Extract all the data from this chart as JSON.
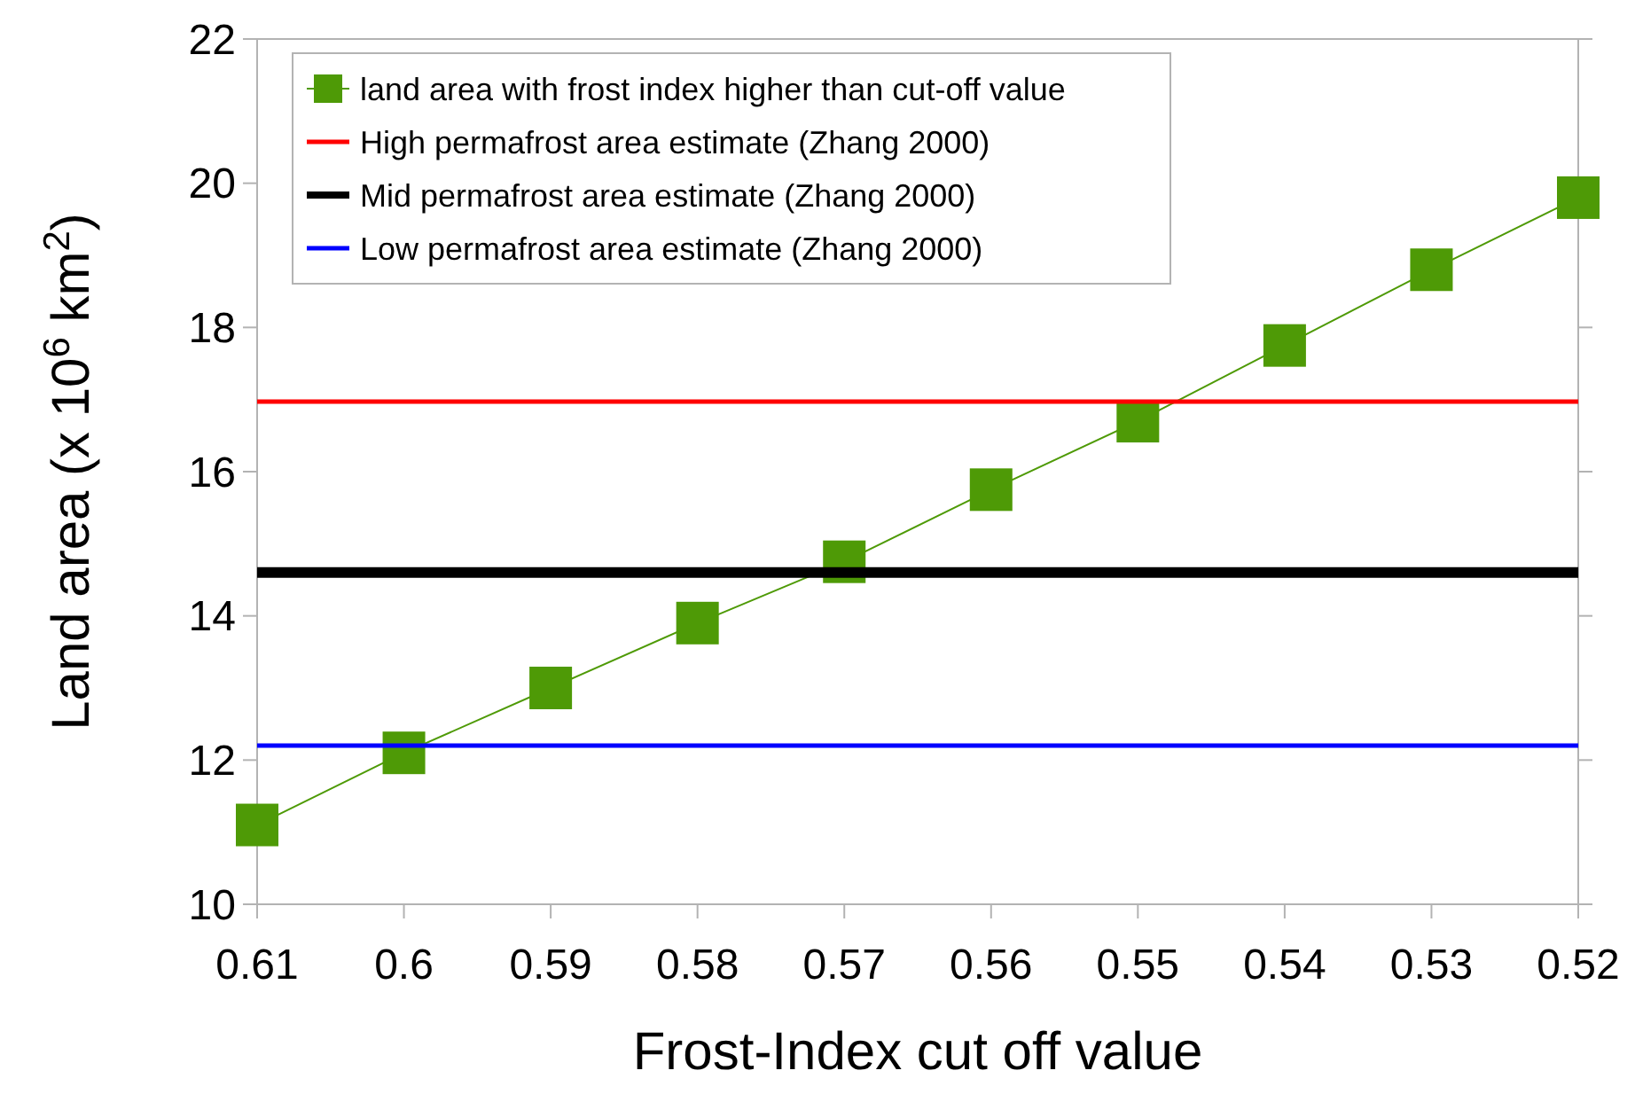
{
  "chart_data": {
    "type": "line",
    "xlabel": "Frost-Index cut off value",
    "ylabel": "Land area (x 10$^{6}$ km$^{2}$)",
    "x": [
      0.61,
      0.6,
      0.59,
      0.58,
      0.57,
      0.56,
      0.55,
      0.54,
      0.53,
      0.52
    ],
    "xlim": [
      0.61,
      0.52
    ],
    "xticks": [
      0.61,
      0.6,
      0.59,
      0.58,
      0.57,
      0.56,
      0.55,
      0.54,
      0.53,
      0.52
    ],
    "ylim": [
      10,
      22
    ],
    "yticks": [
      10,
      12,
      14,
      16,
      18,
      20,
      22
    ],
    "grid": false,
    "legend": "top left",
    "series": [
      {
        "name": "land area with frost index higher than cut-off value",
        "color": "#4e9a06",
        "marker": "square",
        "values": [
          11.1,
          12.1,
          13.0,
          13.9,
          14.75,
          15.75,
          16.7,
          17.75,
          18.8,
          19.8
        ]
      },
      {
        "name": "High permafrost area estimate (Zhang 2000)",
        "color": "#ff0000",
        "marker": "none",
        "values": [
          16.97,
          16.97,
          16.97,
          16.97,
          16.97,
          16.97,
          16.97,
          16.97,
          16.97,
          16.97
        ]
      },
      {
        "name": "Mid permafrost area estimate (Zhang 2000)",
        "color": "#000000",
        "marker": "none",
        "values": [
          14.6,
          14.6,
          14.6,
          14.6,
          14.6,
          14.6,
          14.6,
          14.6,
          14.6,
          14.6
        ]
      },
      {
        "name": "Low permafrost area estimate (Zhang 2000)",
        "color": "#0000ff",
        "marker": "none",
        "values": [
          12.2,
          12.2,
          12.2,
          12.2,
          12.2,
          12.2,
          12.2,
          12.2,
          12.2,
          12.2
        ]
      }
    ]
  }
}
